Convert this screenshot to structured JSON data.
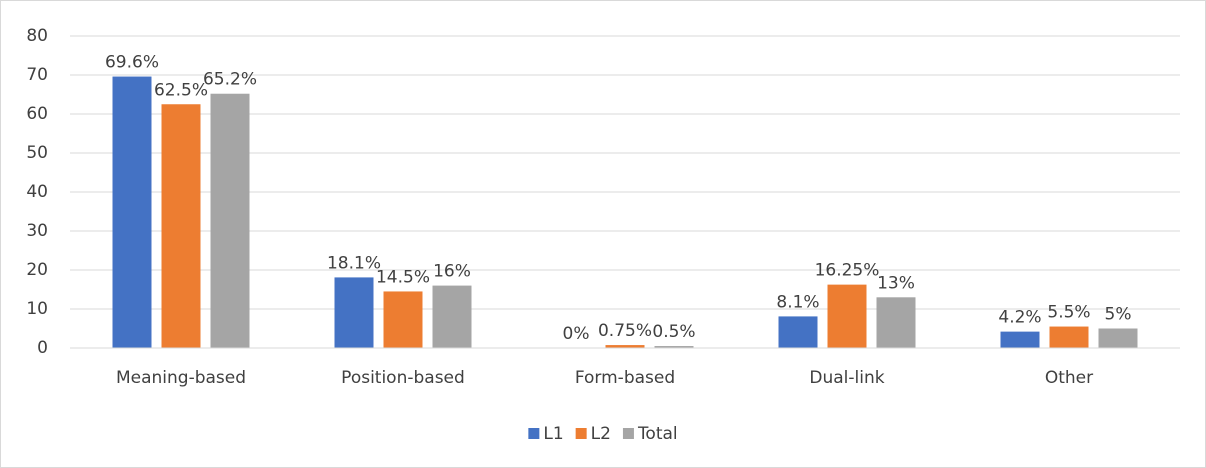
{
  "chart_data": {
    "type": "bar",
    "categories": [
      "Meaning-based",
      "Position-based",
      "Form-based",
      "Dual-link",
      "Other"
    ],
    "series": [
      {
        "name": "L1",
        "color": "#4472c4",
        "values": [
          69.6,
          18.1,
          0,
          8.1,
          4.2
        ],
        "value_labels": [
          "69.6%",
          "18.1%",
          "0%",
          "8.1%",
          "4.2%"
        ]
      },
      {
        "name": "L2",
        "color": "#ed7d31",
        "values": [
          62.5,
          14.5,
          0.75,
          16.25,
          5.5
        ],
        "value_labels": [
          "62.5%",
          "14.5%",
          "0.75%",
          "16.25%",
          "5.5%"
        ]
      },
      {
        "name": "Total",
        "color": "#a5a5a5",
        "values": [
          65.2,
          16,
          0.5,
          13,
          5
        ],
        "value_labels": [
          "65.2%",
          "16%",
          "0.5%",
          "13%",
          "5%"
        ]
      }
    ],
    "ylim": [
      0,
      80
    ],
    "yticks": [
      0,
      10,
      20,
      30,
      40,
      50,
      60,
      70,
      80
    ],
    "grid": true,
    "legend": "bottom"
  }
}
